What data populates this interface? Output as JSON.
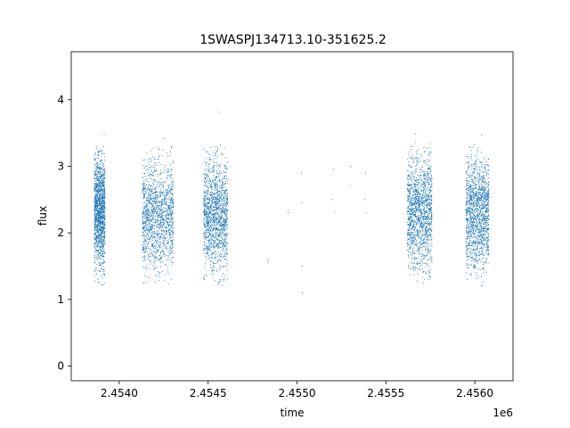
{
  "chart_data": {
    "type": "scatter",
    "title": "1SWASPJ134713.10-351625.2",
    "xlabel": "time",
    "ylabel": "flux",
    "x_offset_label": "1e6",
    "xlim": [
      2453730,
      2456215
    ],
    "ylim": [
      -0.22,
      4.72
    ],
    "x_ticks": [
      2.454,
      2.4545,
      2.455,
      2.4555,
      2.456
    ],
    "x_tick_labels": [
      "2.4540",
      "2.4545",
      "2.4550",
      "2.4555",
      "2.4560"
    ],
    "y_ticks": [
      0,
      1,
      2,
      3,
      4
    ],
    "y_tick_labels": [
      "0",
      "1",
      "2",
      "3",
      "4"
    ],
    "grid": false,
    "marker_color": "#1f77b4",
    "clusters": [
      {
        "x_range": [
          2453860,
          2453920
        ],
        "y_mean": 2.3,
        "y_spread": 0.55
      },
      {
        "x_range": [
          2454130,
          2454305
        ],
        "y_mean": 2.25,
        "y_spread": 0.55
      },
      {
        "x_range": [
          2454475,
          2454610
        ],
        "y_mean": 2.25,
        "y_spread": 0.55
      },
      {
        "x_range": [
          2455620,
          2455760
        ],
        "y_mean": 2.3,
        "y_spread": 0.55
      },
      {
        "x_range": [
          2455950,
          2456080
        ],
        "y_mean": 2.3,
        "y_spread": 0.55
      }
    ],
    "sparse_points": [
      {
        "x": 2454835,
        "y": 1.6
      },
      {
        "x": 2454837,
        "y": 1.55
      },
      {
        "x": 2454950,
        "y": 2.3
      },
      {
        "x": 2454952,
        "y": 2.35
      },
      {
        "x": 2455025,
        "y": 2.9
      },
      {
        "x": 2455027,
        "y": 2.45
      },
      {
        "x": 2455030,
        "y": 1.1
      },
      {
        "x": 2455028,
        "y": 1.5
      },
      {
        "x": 2455200,
        "y": 2.5
      },
      {
        "x": 2455205,
        "y": 2.95
      },
      {
        "x": 2455210,
        "y": 2.3
      },
      {
        "x": 2455300,
        "y": 2.7
      },
      {
        "x": 2455302,
        "y": 3.0
      },
      {
        "x": 2455380,
        "y": 2.5
      },
      {
        "x": 2455385,
        "y": 2.9
      },
      {
        "x": 2455388,
        "y": 2.3
      }
    ]
  }
}
